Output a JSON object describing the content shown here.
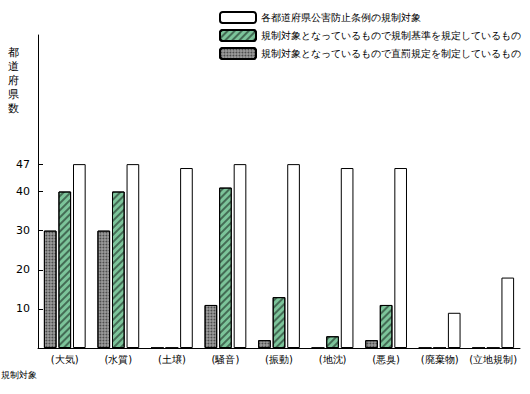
{
  "chart_data": {
    "type": "bar",
    "x_label": "規制対象",
    "y_label": "都道府県数",
    "categories": [
      "(大気)",
      "(水質)",
      "(土壌)",
      "(騒音)",
      "(振動)",
      "(地沈)",
      "(悪臭)",
      "(廃棄物)",
      "(立地規制)"
    ],
    "series": [
      {
        "name": "各都道府県公害防止条例の規制対象",
        "color": "#ffffff",
        "values": [
          47,
          47,
          46,
          47,
          47,
          46,
          46,
          9,
          18
        ]
      },
      {
        "name": "規制対象となっているもので規制基準を規定しているもの",
        "color": "#7cc49a",
        "values": [
          40,
          40,
          0,
          41,
          13,
          3,
          11,
          0,
          0
        ]
      },
      {
        "name": "規制対象となっているもので直罰規定を制定しているもの",
        "color": "#9a9a9a",
        "values": [
          30,
          30,
          0,
          11,
          2,
          0,
          2,
          0,
          0
        ]
      }
    ],
    "ylim": [
      0,
      80
    ],
    "yticks": [
      10,
      20,
      30,
      40,
      47
    ],
    "grid": false,
    "legend": "upper right"
  }
}
